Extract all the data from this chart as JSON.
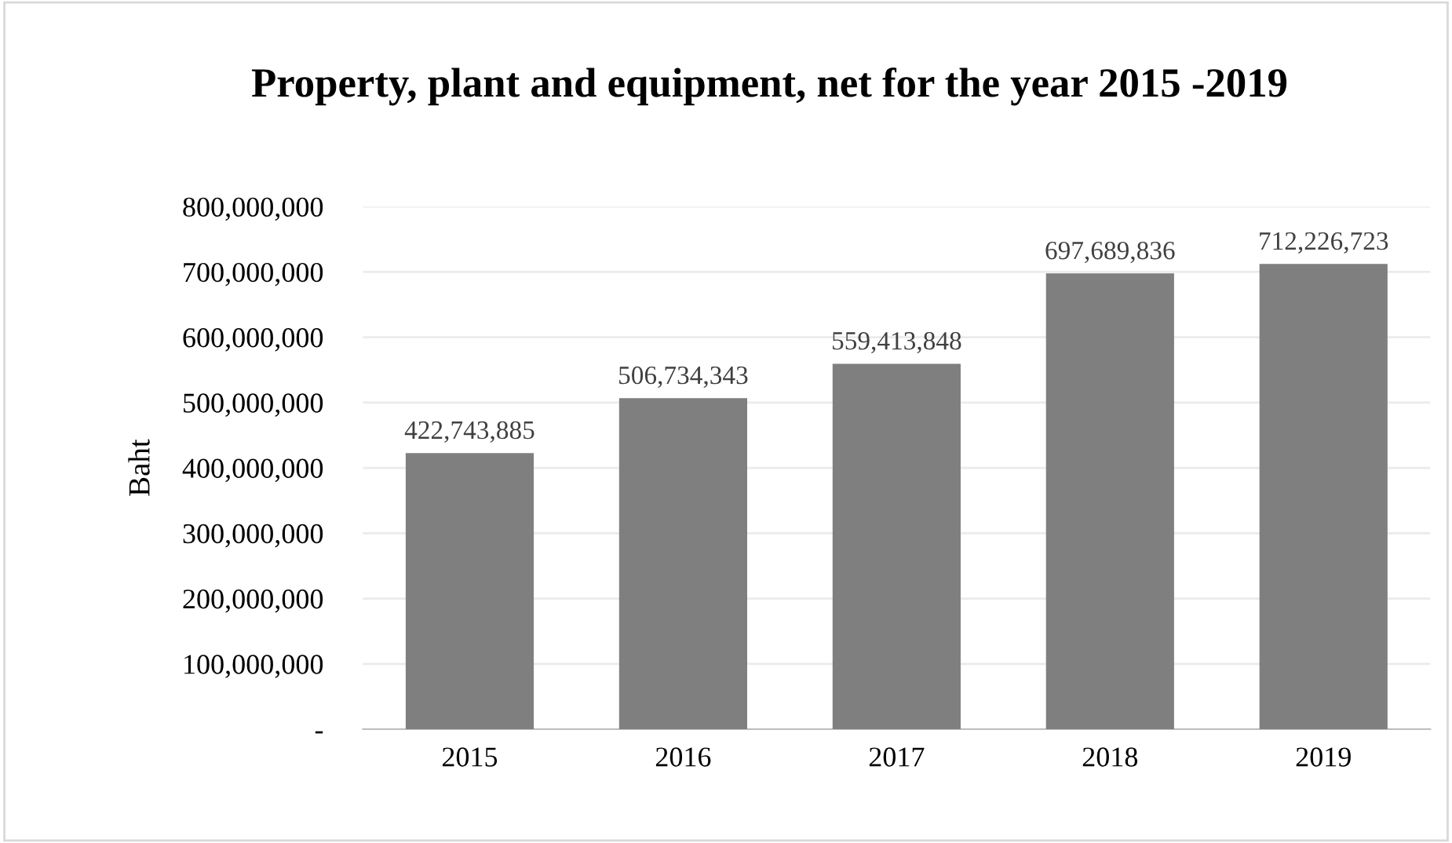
{
  "chart_data": {
    "type": "bar",
    "title": "Property, plant and equipment, net for the year 2015 -2019",
    "ylabel": "Baht",
    "categories": [
      "2015",
      "2016",
      "2017",
      "2018",
      "2019"
    ],
    "values": [
      422743885,
      506734343,
      559413848,
      697689836,
      712226723
    ],
    "value_labels": [
      "422,743,885",
      "506,734,343",
      "559,413,848",
      "697,689,836",
      "712,226,723"
    ],
    "color": "#7f7f7f",
    "ylim": [
      0,
      800000000
    ],
    "yticks": [
      {
        "value": 0,
        "label": "-"
      },
      {
        "value": 100000000,
        "label": "100,000,000"
      },
      {
        "value": 200000000,
        "label": "200,000,000"
      },
      {
        "value": 300000000,
        "label": "300,000,000"
      },
      {
        "value": 400000000,
        "label": "400,000,000"
      },
      {
        "value": 500000000,
        "label": "500,000,000"
      },
      {
        "value": 600000000,
        "label": "600,000,000"
      },
      {
        "value": 700000000,
        "label": "700,000,000"
      },
      {
        "value": 800000000,
        "label": "800,000,000"
      }
    ],
    "grid": "y",
    "legend": false
  }
}
